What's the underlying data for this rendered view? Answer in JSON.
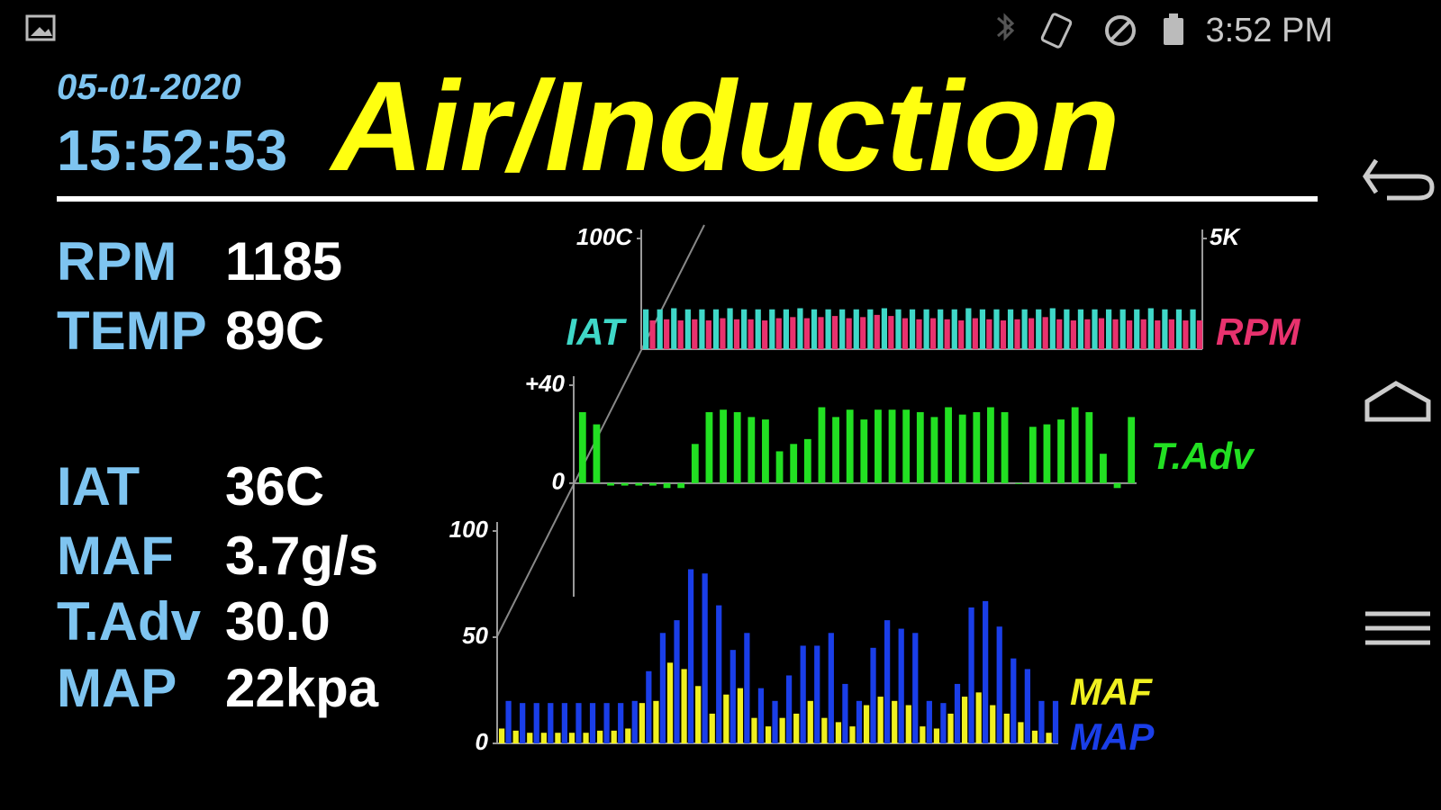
{
  "status_bar": {
    "time": "3:52 PM"
  },
  "header": {
    "date": "05-01-2020",
    "clock": "15:52:53",
    "title": "Air/Induction"
  },
  "readouts": [
    {
      "label": "RPM",
      "value": "1185"
    },
    {
      "label": "TEMP",
      "value": "89C"
    },
    {
      "label": "IAT",
      "value": "36C"
    },
    {
      "label": "MAF",
      "value": "3.7g/s"
    },
    {
      "label": "T.Adv",
      "value": "30.0"
    },
    {
      "label": "MAP",
      "value": "22kpa"
    }
  ],
  "chart_data": [
    {
      "type": "bar",
      "ylim": [
        0,
        100
      ],
      "yticks": [
        {
          "value": 100,
          "label": "100C"
        }
      ],
      "y2lim": [
        0,
        5000
      ],
      "y2ticks": [
        {
          "value": 5000,
          "label": "5K"
        }
      ],
      "series": [
        {
          "name": "IAT",
          "color": "#3fd8c8",
          "values": [
            36,
            36,
            37,
            36,
            36,
            36,
            37,
            36,
            36,
            36,
            36,
            37,
            36,
            36,
            36,
            36,
            36,
            37,
            36,
            36,
            36,
            36,
            36,
            37,
            36,
            36,
            36,
            36,
            36,
            37,
            36,
            36,
            36,
            36,
            36,
            36,
            37,
            36,
            36,
            36
          ]
        },
        {
          "name": "RPM",
          "color": "#e8326e",
          "axis": "y2",
          "values": [
            1300,
            1350,
            1300,
            1350,
            1300,
            1400,
            1350,
            1350,
            1300,
            1400,
            1450,
            1400,
            1450,
            1500,
            1400,
            1450,
            1550,
            1500,
            1400,
            1350,
            1400,
            1350,
            1300,
            1400,
            1350,
            1300,
            1350,
            1400,
            1450,
            1350,
            1300,
            1350,
            1400,
            1350,
            1300,
            1350,
            1300,
            1350,
            1300,
            1300
          ]
        }
      ]
    },
    {
      "type": "bar",
      "ylim": [
        -3,
        40
      ],
      "yticks": [
        0,
        {
          "value": 40,
          "label": "+40"
        }
      ],
      "series": [
        {
          "name": "T.Adv",
          "color": "#22e022",
          "values": [
            29,
            24,
            -1,
            -1,
            -1,
            -1,
            -2,
            -2,
            16,
            29,
            30,
            29,
            27,
            26,
            13,
            16,
            18,
            31,
            27,
            30,
            26,
            30,
            30,
            30,
            29,
            27,
            31,
            28,
            29,
            31,
            29,
            0,
            23,
            24,
            26,
            31,
            29,
            12,
            -2,
            27
          ]
        }
      ]
    },
    {
      "type": "bar",
      "ylim": [
        0,
        100
      ],
      "yticks": [
        0,
        50,
        100
      ],
      "series": [
        {
          "name": "MAF",
          "color": "#f0f020",
          "values": [
            7,
            6,
            5,
            5,
            5,
            5,
            5,
            6,
            6,
            7,
            19,
            20,
            38,
            35,
            27,
            14,
            23,
            26,
            12,
            8,
            12,
            14,
            20,
            12,
            10,
            8,
            18,
            22,
            20,
            18,
            8,
            7,
            14,
            22,
            24,
            18,
            14,
            10,
            6,
            5
          ]
        },
        {
          "name": "MAP",
          "color": "#1a3ee8",
          "values": [
            20,
            19,
            19,
            19,
            19,
            19,
            19,
            19,
            19,
            20,
            34,
            52,
            58,
            82,
            80,
            65,
            44,
            52,
            26,
            20,
            32,
            46,
            46,
            52,
            28,
            20,
            45,
            58,
            54,
            52,
            20,
            19,
            28,
            64,
            67,
            55,
            40,
            35,
            20,
            20
          ]
        }
      ]
    }
  ]
}
